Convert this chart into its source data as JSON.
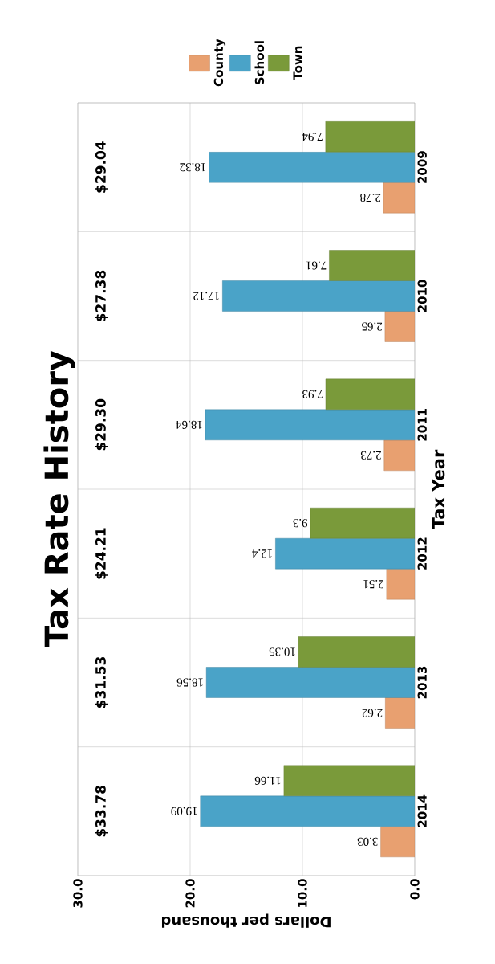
{
  "chart_data": {
    "type": "bar",
    "orientation": "horizontal",
    "title": "Tax Rate History",
    "xlabel": "Dollars per thousand",
    "ylabel": "Tax Year",
    "categories": [
      "2009",
      "2010",
      "2011",
      "2012",
      "2013",
      "2014"
    ],
    "series": [
      {
        "name": "County",
        "color": "#e8a070",
        "values": [
          2.78,
          2.65,
          2.73,
          2.51,
          2.62,
          3.03
        ]
      },
      {
        "name": "School",
        "color": "#4aa3c8",
        "values": [
          18.32,
          17.12,
          18.64,
          12.4,
          18.56,
          19.09
        ]
      },
      {
        "name": "Town",
        "color": "#7a9a3a",
        "values": [
          7.94,
          7.61,
          7.93,
          9.3,
          10.35,
          11.66
        ]
      }
    ],
    "annotations": [
      "$29.04",
      "$27.38",
      "$29.30",
      "$24.21",
      "$31.53",
      "$33.78"
    ],
    "xlim": [
      30,
      0
    ],
    "xticks": [
      {
        "value": 30,
        "label": "30.0"
      },
      {
        "value": 20,
        "label": "20.0"
      },
      {
        "value": 10,
        "label": "10.0"
      },
      {
        "value": 0,
        "label": "0.0"
      }
    ],
    "data_labels": true,
    "grid": true,
    "legend": "top"
  }
}
